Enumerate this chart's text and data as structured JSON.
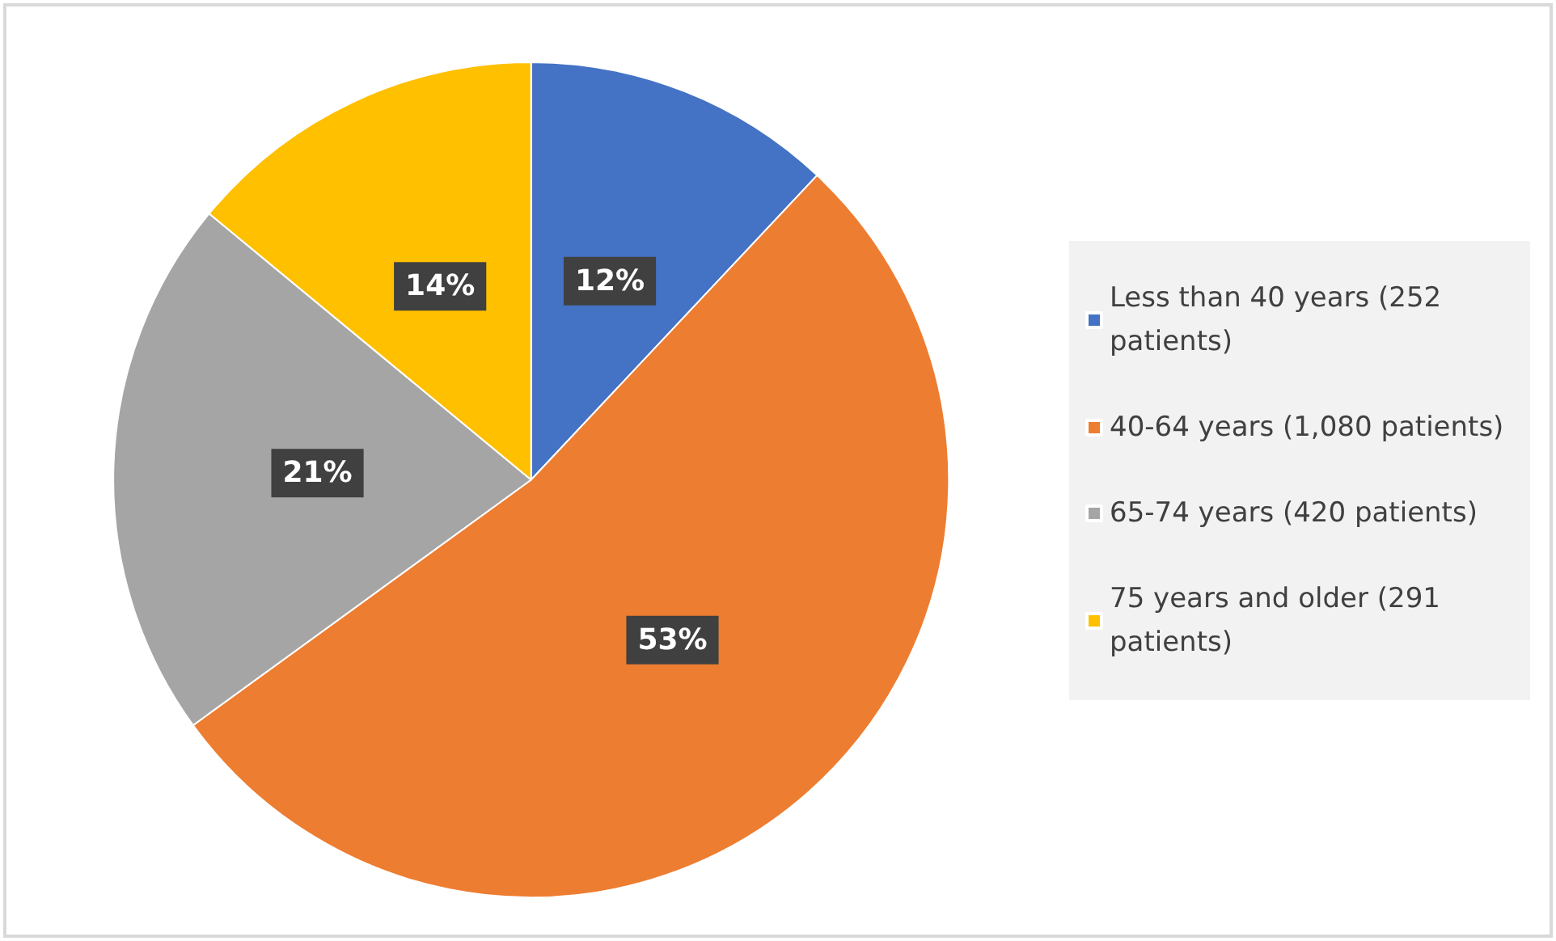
{
  "chart_data": {
    "type": "pie",
    "categories": [
      "Less than 40 years (252 patients)",
      "40-64 years (1,080 patients)",
      "65-74 years (420 patients)",
      "75 years and older (291 patients)"
    ],
    "values": [
      12,
      53,
      21,
      14
    ],
    "value_labels": [
      "12%",
      "53%",
      "21%",
      "14%"
    ],
    "colors": [
      "#4472c4",
      "#ed7d31",
      "#a5a5a5",
      "#ffc000"
    ],
    "legend": "right"
  }
}
